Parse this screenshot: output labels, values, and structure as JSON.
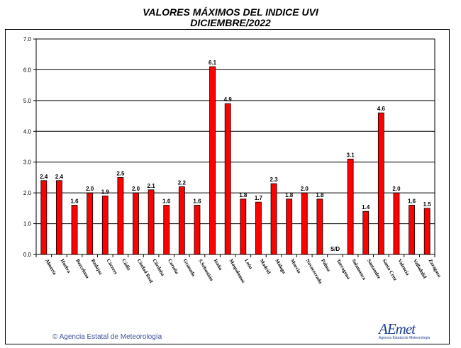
{
  "header": {
    "title_line1": "VALORES MÁXIMOS DEL INDICE UVI",
    "title_line2": "DICIEMBRE/2022"
  },
  "footer": {
    "copyright": "© Agencia Estatal de Meteorología",
    "logo_text": "AEmet",
    "logo_subtext": "Agencia Estatal de Meteorología"
  },
  "colors": {
    "bar": "#ff0000",
    "bar_border": "#000000",
    "logo_blue": "#1d3f97",
    "copyright_blue": "#3a4f9a"
  },
  "chart_data": {
    "type": "bar",
    "title": "VALORES MÁXIMOS DEL INDICE UVI DICIEMBRE/2022",
    "xlabel": "",
    "ylabel": "",
    "ylim": [
      0,
      7
    ],
    "yticks": [
      "0.0",
      "1.0",
      "2.0",
      "3.0",
      "4.0",
      "5.0",
      "6.0",
      "7.0"
    ],
    "grid": true,
    "categories": [
      "Almería",
      "Huelva",
      "Barcelona",
      "Badajoz",
      "Cáceres",
      "Cádiz",
      "Ciudad Real",
      "Córdoba",
      "Coruña",
      "Granada",
      "S.Sebastián",
      "Izaña",
      "Maspalomas",
      "León",
      "Madrid",
      "Málaga",
      "Murcia",
      "Navacerrada",
      "Palma",
      "Tarragona",
      "Salamanca",
      "Santander",
      "Santa Cruz",
      "Valencia",
      "Valladolid",
      "Zaragoza"
    ],
    "values": [
      2.4,
      2.4,
      1.6,
      2.0,
      1.9,
      2.5,
      2.0,
      2.1,
      1.6,
      2.2,
      1.6,
      6.1,
      4.9,
      1.8,
      1.7,
      2.3,
      1.8,
      2.0,
      1.8,
      null,
      3.1,
      1.4,
      4.6,
      2.0,
      1.6,
      1.5
    ],
    "value_labels": [
      "2.4",
      "2.4",
      "1.6",
      "2.0",
      "1.9",
      "2.5",
      "2.0",
      "2.1",
      "1.6",
      "2.2",
      "1.6",
      "6.1",
      "4.9",
      "1.8",
      "1.7",
      "2.3",
      "1.8",
      "2.0",
      "1.8",
      "S/D",
      "3.1",
      "1.4",
      "4.6",
      "2.0",
      "1.6",
      "1.5"
    ]
  }
}
